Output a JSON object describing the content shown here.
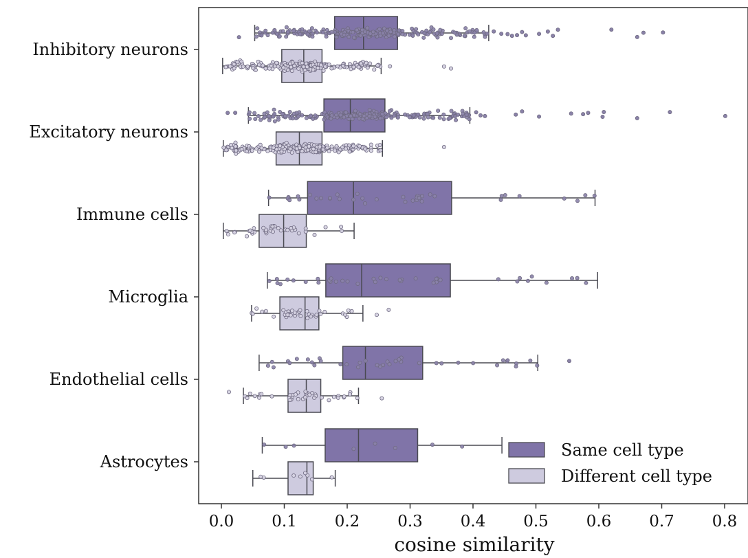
{
  "chart_data": {
    "type": "boxplot",
    "title": "",
    "xlabel": "cosine similarity",
    "ylabel": "",
    "xlim": [
      -0.02,
      0.82
    ],
    "xticks": [
      0.0,
      0.1,
      0.2,
      0.3,
      0.4,
      0.5,
      0.6,
      0.7,
      0.8
    ],
    "xtick_labels": [
      "0.0",
      "0.1",
      "0.2",
      "0.3",
      "0.4",
      "0.5",
      "0.6",
      "0.7",
      "0.8"
    ],
    "orientation": "horizontal",
    "grid": false,
    "legend_position": "bottom-right",
    "categories": [
      "Inhibitory neurons",
      "Excitatory neurons",
      "Immune cells",
      "Microglia",
      "Endothelial cells",
      "Astrocytes"
    ],
    "series": [
      {
        "name": "Same cell type",
        "color": "#8074a8",
        "stats": [
          {
            "whislo": 0.053,
            "q1": 0.18,
            "med": 0.226,
            "q3": 0.28,
            "whishi": 0.425
          },
          {
            "whislo": 0.043,
            "q1": 0.163,
            "med": 0.205,
            "q3": 0.26,
            "whishi": 0.395
          },
          {
            "whislo": 0.075,
            "q1": 0.137,
            "med": 0.21,
            "q3": 0.366,
            "whishi": 0.594
          },
          {
            "whislo": 0.073,
            "q1": 0.166,
            "med": 0.223,
            "q3": 0.364,
            "whishi": 0.598
          },
          {
            "whislo": 0.06,
            "q1": 0.193,
            "med": 0.229,
            "q3": 0.32,
            "whishi": 0.503
          },
          {
            "whislo": 0.065,
            "q1": 0.165,
            "med": 0.218,
            "q3": 0.312,
            "whishi": 0.446
          }
        ],
        "outliers": [
          [
            0.028,
            0.433,
            0.445,
            0.455,
            0.462,
            0.47,
            0.478,
            0.484,
            0.505,
            0.519,
            0.527,
            0.535,
            0.62,
            0.661,
            0.671,
            0.702
          ],
          [
            0.01,
            0.022,
            0.405,
            0.412,
            0.419,
            0.468,
            0.478,
            0.505,
            0.556,
            0.575,
            0.583,
            0.606,
            0.608,
            0.661,
            0.713,
            0.801
          ],
          [],
          [],
          [
            0.553
          ],
          []
        ]
      },
      {
        "name": "Different cell type",
        "color": "#cecbdf",
        "stats": [
          {
            "whislo": 0.002,
            "q1": 0.096,
            "med": 0.131,
            "q3": 0.16,
            "whishi": 0.254
          },
          {
            "whislo": 0.003,
            "q1": 0.087,
            "med": 0.124,
            "q3": 0.16,
            "whishi": 0.256
          },
          {
            "whislo": 0.003,
            "q1": 0.06,
            "med": 0.099,
            "q3": 0.135,
            "whishi": 0.211
          },
          {
            "whislo": 0.048,
            "q1": 0.093,
            "med": 0.133,
            "q3": 0.155,
            "whishi": 0.225
          },
          {
            "whislo": 0.035,
            "q1": 0.106,
            "med": 0.135,
            "q3": 0.158,
            "whishi": 0.218
          },
          {
            "whislo": 0.05,
            "q1": 0.106,
            "med": 0.136,
            "q3": 0.146,
            "whishi": 0.181
          }
        ],
        "outliers": [
          [
            0.268,
            0.354,
            0.365
          ],
          [
            0.354
          ],
          [],
          [
            0.247,
            0.266
          ],
          [
            0.012,
            0.255
          ],
          []
        ]
      }
    ],
    "legend": [
      "Same cell type",
      "Different cell type"
    ],
    "colors": {
      "axis": "#333333",
      "box_edge": "#4a4a52",
      "point_edge": "#6f6a82"
    }
  }
}
